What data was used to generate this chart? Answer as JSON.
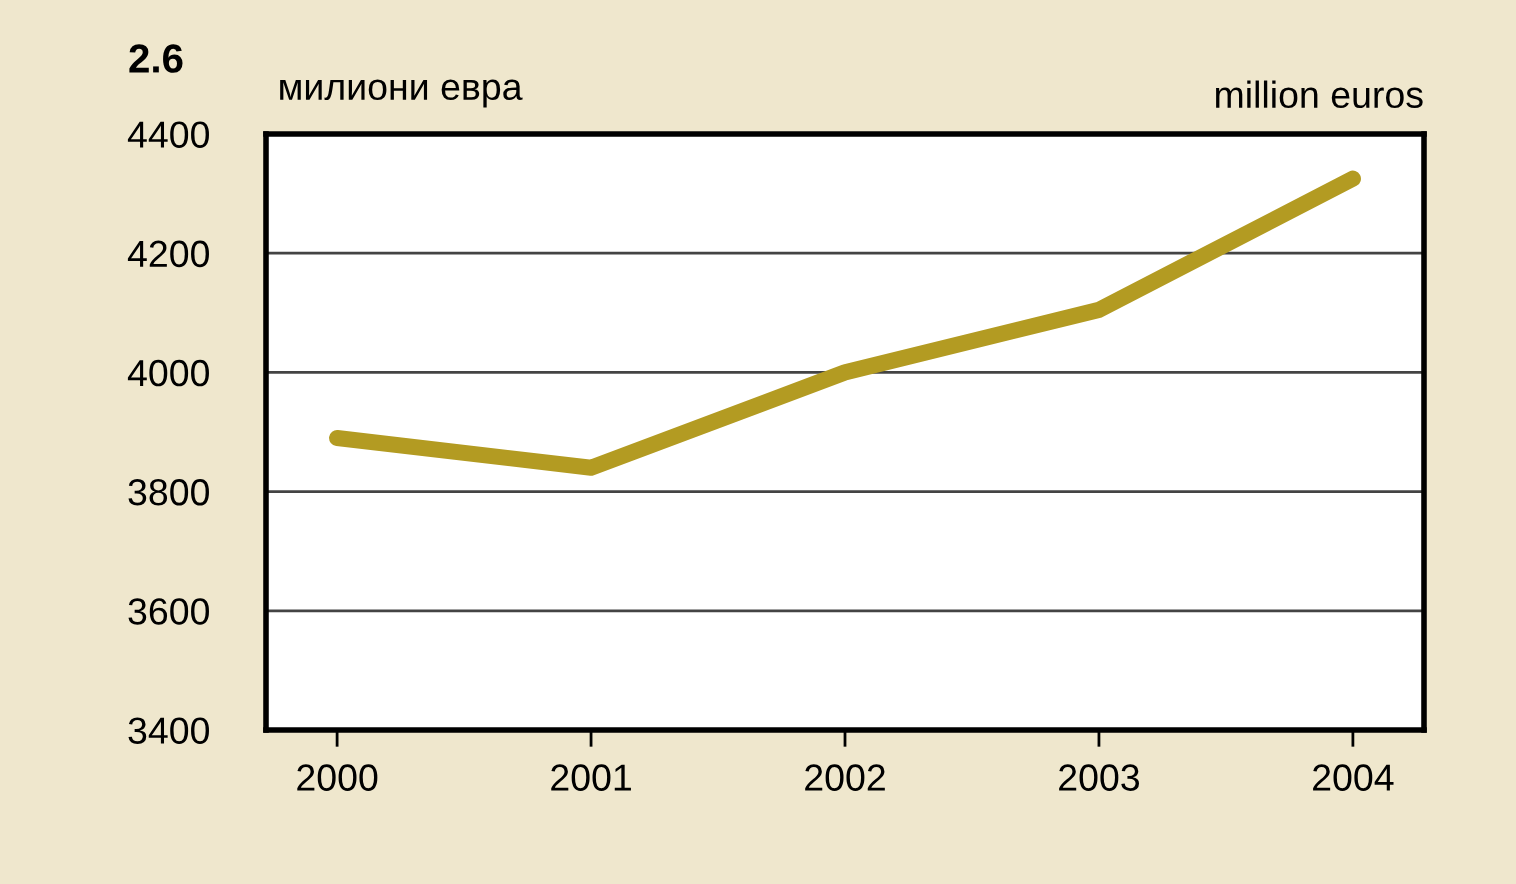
{
  "chart_data": {
    "type": "line",
    "title": "2.6",
    "ylabel": "милиони евра",
    "annotations": [
      "million euros"
    ],
    "categories": [
      "2000",
      "2001",
      "2002",
      "2003",
      "2004"
    ],
    "series": [
      {
        "color": "#b39b22",
        "values": [
          3890,
          3840,
          4000,
          4105,
          4325
        ]
      }
    ],
    "ylim": [
      3400,
      4400
    ],
    "yticks": [
      3400,
      3600,
      3800,
      4000,
      4200,
      4400
    ],
    "grid": "y",
    "line_style": "solid"
  }
}
